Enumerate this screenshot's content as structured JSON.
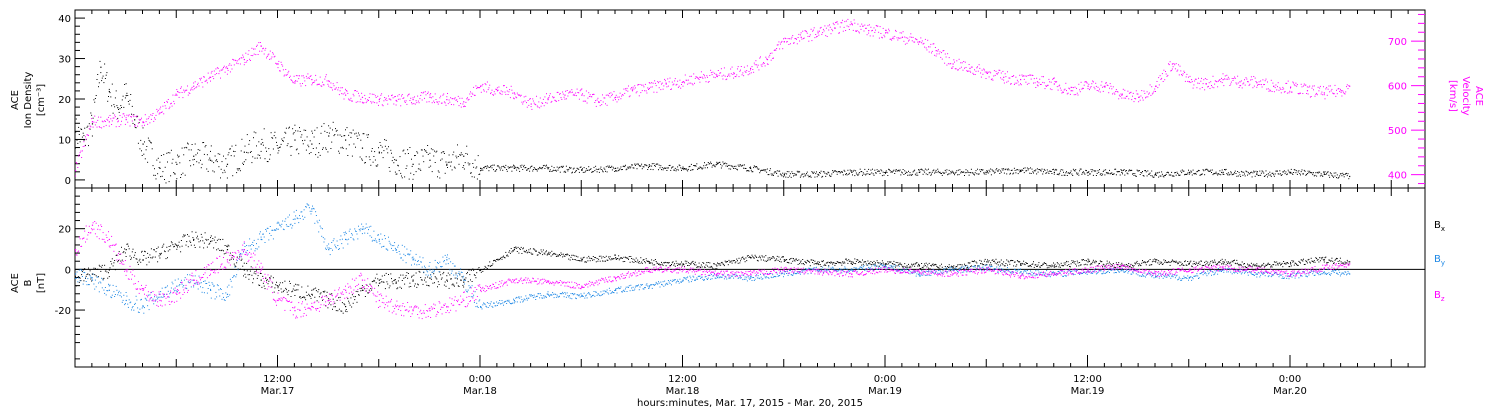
{
  "colors": {
    "black": "#000000",
    "magenta": "#ff00ff",
    "blue": "#1e88e5",
    "background": "#ffffff"
  },
  "time_axis": {
    "caption": "hours:minutes, Mar. 17, 2015 - Mar. 20, 2015",
    "range_hours": [
      0,
      80
    ],
    "ticks": [
      {
        "hours": 12,
        "time": "12:00",
        "date": "Mar.17"
      },
      {
        "hours": 24,
        "time": "0:00",
        "date": "Mar.18"
      },
      {
        "hours": 36,
        "time": "12:00",
        "date": "Mar.18"
      },
      {
        "hours": 48,
        "time": "0:00",
        "date": "Mar.19"
      },
      {
        "hours": 60,
        "time": "12:00",
        "date": "Mar.19"
      },
      {
        "hours": 72,
        "time": "0:00",
        "date": "Mar.20"
      }
    ]
  },
  "chart_data": [
    {
      "type": "scatter",
      "title": "",
      "ylabel": [
        "ACE",
        "Ion Density",
        "[cm⁻³]"
      ],
      "y2label": [
        "ACE",
        "Velocity",
        "[km/s]"
      ],
      "ylim": [
        -2,
        42
      ],
      "y2lim": [
        370,
        770
      ],
      "yticks": [
        0,
        10,
        20,
        30,
        40
      ],
      "y2ticks": [
        400,
        500,
        600,
        700
      ],
      "grid": false,
      "series": [
        {
          "name": "Ion Density",
          "color": "black",
          "axis": "left",
          "x": [
            0,
            0.5,
            1,
            1.5,
            2,
            2.5,
            3,
            3.5,
            4,
            5,
            6,
            7,
            8,
            9,
            10,
            11,
            12,
            13,
            14,
            15,
            16,
            17,
            18,
            19,
            20,
            21,
            22,
            23,
            24,
            26,
            28,
            30,
            32,
            34,
            36,
            38,
            40,
            42,
            44,
            46,
            48,
            50,
            52,
            54,
            56,
            58,
            60,
            62,
            64,
            66,
            68,
            70,
            72,
            74,
            75.5
          ],
          "y": [
            12,
            10,
            14,
            28,
            22,
            18,
            21,
            15,
            9,
            3,
            4,
            6,
            5,
            4,
            7,
            9,
            8,
            10,
            9,
            11,
            10,
            8,
            7,
            5,
            4,
            5,
            4,
            6,
            3,
            3,
            3,
            2.5,
            3,
            3.5,
            3,
            4,
            3,
            1.5,
            1.5,
            2,
            2,
            2,
            2,
            2,
            2.5,
            2,
            2,
            2,
            1.5,
            2,
            2,
            1.5,
            2,
            1.5,
            1
          ]
        },
        {
          "name": "Velocity",
          "color": "magenta",
          "axis": "right",
          "x": [
            0,
            1,
            2,
            3,
            4,
            5,
            6,
            7,
            8,
            9,
            10,
            11,
            12,
            13,
            14,
            15,
            16,
            17,
            18,
            19,
            20,
            21,
            22,
            23,
            24,
            25,
            26,
            27,
            28,
            29,
            30,
            31,
            32,
            33,
            34,
            35,
            36,
            37,
            38,
            39,
            40,
            41,
            42,
            43,
            44,
            45,
            46,
            47,
            48,
            49,
            50,
            51,
            52,
            53,
            54,
            55,
            56,
            57,
            58,
            59,
            60,
            61,
            62,
            63,
            64,
            65,
            66,
            67,
            68,
            69,
            70,
            71,
            72,
            73,
            74,
            75,
            75.5
          ],
          "y": [
            410,
            520,
            520,
            525,
            520,
            540,
            580,
            600,
            620,
            640,
            660,
            690,
            650,
            610,
            615,
            612,
            580,
            575,
            570,
            568,
            570,
            575,
            570,
            565,
            600,
            590,
            585,
            560,
            570,
            580,
            580,
            565,
            575,
            590,
            595,
            605,
            610,
            620,
            625,
            630,
            640,
            660,
            700,
            710,
            720,
            730,
            740,
            725,
            720,
            710,
            700,
            680,
            650,
            640,
            630,
            620,
            615,
            610,
            605,
            590,
            600,
            600,
            580,
            575,
            600,
            650,
            610,
            605,
            615,
            610,
            608,
            600,
            598,
            590,
            585,
            590,
            600
          ]
        }
      ]
    },
    {
      "type": "scatter",
      "title": "",
      "ylabel": [
        "ACE",
        "B",
        "[nT]"
      ],
      "ylim": [
        -48,
        40
      ],
      "yticks": [
        -20,
        0,
        20
      ],
      "zero_line": true,
      "grid": false,
      "legend_position": "right",
      "series": [
        {
          "name": "Bx",
          "label_main": "B",
          "label_sub": "x",
          "color": "black",
          "x": [
            0,
            1,
            2,
            3,
            4,
            5,
            6,
            7,
            8,
            9,
            10,
            11,
            12,
            13,
            14,
            15,
            16,
            17,
            18,
            19,
            20,
            21,
            22,
            23,
            24,
            26,
            28,
            30,
            32,
            34,
            36,
            38,
            40,
            42,
            44,
            46,
            48,
            50,
            52,
            54,
            56,
            58,
            60,
            62,
            64,
            66,
            68,
            70,
            72,
            74,
            75.5
          ],
          "y": [
            -4,
            -2,
            0,
            10,
            5,
            8,
            12,
            15,
            14,
            10,
            0,
            -5,
            -8,
            -10,
            -12,
            -15,
            -18,
            -10,
            -5,
            -6,
            -5,
            -4,
            -5,
            -6,
            0,
            10,
            8,
            5,
            6,
            4,
            3,
            2,
            6,
            5,
            3,
            4,
            3,
            2,
            1,
            4,
            3,
            2,
            4,
            2,
            4,
            3,
            4,
            2,
            3,
            5,
            4
          ]
        },
        {
          "name": "By",
          "label_main": "B",
          "label_sub": "y",
          "color": "blue",
          "x": [
            0,
            1,
            2,
            3,
            4,
            5,
            6,
            7,
            8,
            9,
            10,
            11,
            12,
            13,
            14,
            15,
            16,
            17,
            18,
            19,
            20,
            21,
            22,
            23,
            24,
            26,
            28,
            30,
            32,
            34,
            36,
            38,
            40,
            42,
            44,
            46,
            48,
            50,
            52,
            54,
            56,
            58,
            60,
            62,
            64,
            66,
            68,
            70,
            72,
            74,
            75.5
          ],
          "y": [
            -2,
            -5,
            -10,
            -15,
            -18,
            -12,
            -8,
            -5,
            -10,
            -12,
            10,
            15,
            20,
            25,
            30,
            10,
            15,
            20,
            15,
            10,
            5,
            0,
            5,
            -5,
            -18,
            -15,
            -12,
            -13,
            -10,
            -8,
            -5,
            -3,
            -4,
            -2,
            0,
            0,
            2,
            -2,
            0,
            1,
            -1,
            -2,
            -1,
            0,
            -3,
            -4,
            0,
            -2,
            -3,
            -1,
            -2
          ]
        },
        {
          "name": "Bz",
          "label_main": "B",
          "label_sub": "z",
          "color": "magenta",
          "x": [
            0,
            1,
            2,
            3,
            4,
            5,
            6,
            7,
            8,
            9,
            10,
            11,
            12,
            13,
            14,
            15,
            16,
            17,
            18,
            19,
            20,
            21,
            22,
            23,
            24,
            26,
            28,
            30,
            32,
            34,
            36,
            38,
            40,
            42,
            44,
            46,
            48,
            50,
            52,
            54,
            56,
            58,
            60,
            62,
            64,
            66,
            68,
            70,
            72,
            74,
            75.5
          ],
          "y": [
            10,
            22,
            15,
            0,
            -10,
            -15,
            -12,
            -5,
            0,
            5,
            10,
            0,
            -15,
            -20,
            -18,
            -15,
            -10,
            -5,
            -15,
            -18,
            -20,
            -20,
            -18,
            -15,
            -10,
            -5,
            -6,
            -8,
            -4,
            0,
            0,
            -2,
            -2,
            0,
            -1,
            -2,
            0,
            -1,
            -2,
            0,
            -3,
            -2,
            0,
            2,
            -2,
            0,
            1,
            0,
            -2,
            1,
            3
          ]
        }
      ]
    }
  ]
}
